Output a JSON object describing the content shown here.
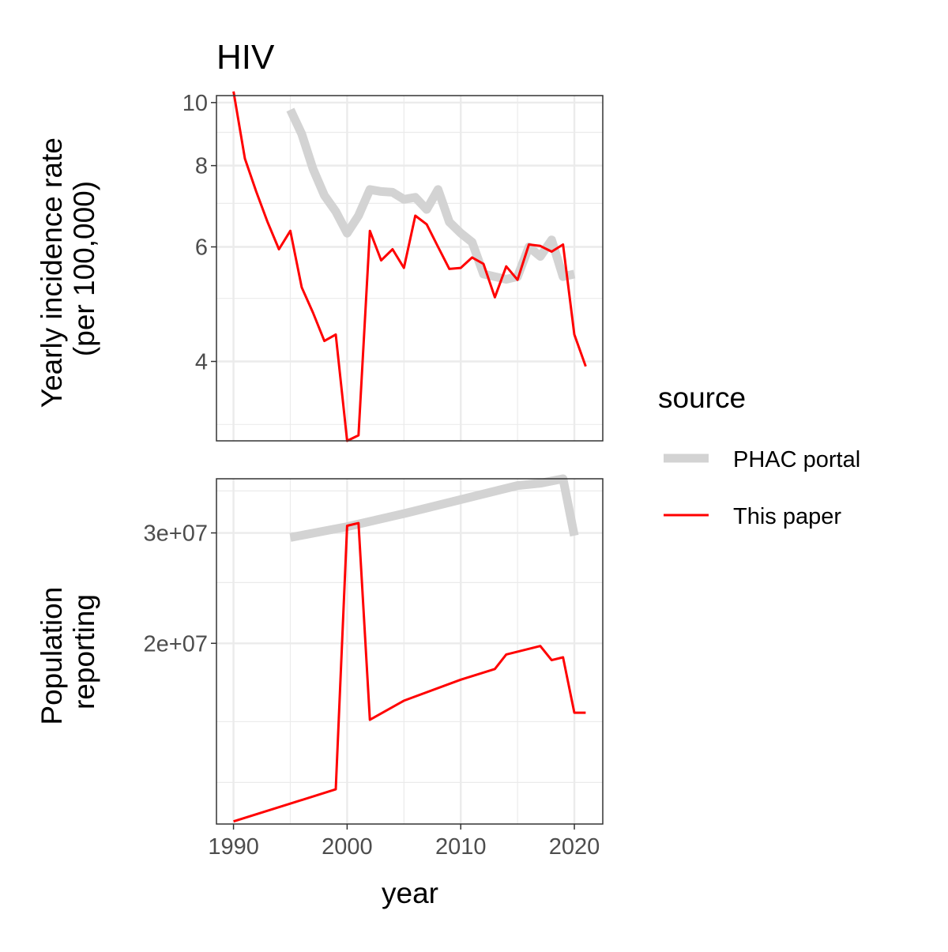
{
  "chart_data": {
    "type": "line",
    "title": "HIV",
    "xlabel": "year",
    "xlim": [
      1988.5,
      2022.5
    ],
    "x_ticks": [
      1990,
      2000,
      2010,
      2020
    ],
    "x_tick_labels": [
      "1990",
      "2000",
      "2010",
      "2020"
    ],
    "legend": {
      "title": "source",
      "position": "right",
      "entries": [
        {
          "label": "PHAC portal",
          "color": "#d3d3d3"
        },
        {
          "label": "This paper",
          "color": "#ff0000"
        }
      ]
    },
    "panels": [
      {
        "id": "incidence",
        "ylabel_lines": [
          "Yearly incidence rate",
          "(per 100,000)"
        ],
        "yscale": "log",
        "ylim": [
          3.02,
          10.25
        ],
        "y_ticks": [
          4,
          6,
          8,
          10
        ],
        "y_tick_labels": [
          "4",
          "6",
          "8",
          "10"
        ],
        "y_minor": [
          5,
          7,
          9,
          3.2
        ],
        "series": [
          {
            "name": "PHAC portal",
            "x": [
              1995,
              1996,
              1997,
              1998,
              1999,
              2000,
              2001,
              2002,
              2003,
              2004,
              2005,
              2006,
              2007,
              2008,
              2009,
              2010,
              2011,
              2012,
              2013,
              2014,
              2015,
              2016,
              2017,
              2018,
              2019,
              2020
            ],
            "y": [
              9.75,
              8.95,
              7.9,
              7.2,
              6.8,
              6.3,
              6.7,
              7.35,
              7.3,
              7.28,
              7.1,
              7.15,
              6.85,
              7.35,
              6.55,
              6.3,
              6.1,
              5.45,
              5.4,
              5.35,
              5.4,
              6.0,
              5.8,
              6.15,
              5.4,
              5.45
            ]
          },
          {
            "name": "This paper",
            "x": [
              1990,
              1991,
              1992,
              1993,
              1994,
              1995,
              1996,
              1997,
              1998,
              1999,
              2000,
              2001,
              2002,
              2003,
              2004,
              2005,
              2006,
              2007,
              2008,
              2009,
              2010,
              2011,
              2012,
              2013,
              2014,
              2015,
              2016,
              2017,
              2018,
              2019,
              2020,
              2021
            ],
            "y": [
              10.4,
              8.2,
              7.3,
              6.55,
              5.95,
              6.35,
              5.2,
              4.75,
              4.3,
              4.4,
              3.02,
              3.08,
              6.35,
              5.72,
              5.95,
              5.57,
              6.7,
              6.5,
              6.0,
              5.55,
              5.57,
              5.78,
              5.65,
              5.02,
              5.6,
              5.34,
              6.05,
              6.02,
              5.9,
              6.05,
              4.4,
              3.93
            ]
          }
        ]
      },
      {
        "id": "population",
        "ylabel_lines": [
          "Population",
          "reporting"
        ],
        "yscale": "log",
        "ylim": [
          10300000,
          36600000
        ],
        "y_ticks": [
          20000000,
          30000000
        ],
        "y_tick_labels": [
          "2e+07",
          "3e+07"
        ],
        "y_minor": [
          15000000,
          12000000,
          25000000,
          35000000
        ],
        "series": [
          {
            "name": "PHAC portal",
            "x": [
              1995,
              2000,
              2005,
              2010,
              2015,
              2017,
              2019,
              2020
            ],
            "y": [
              29500000,
              30700000,
              32200000,
              33900000,
              35700000,
              36000000,
              36600000,
              29700000
            ]
          },
          {
            "name": "This paper",
            "x": [
              1990,
              1999,
              2000,
              2001,
              2002,
              2005,
              2010,
              2013,
              2014,
              2017,
              2018,
              2019,
              2020,
              2021
            ],
            "y": [
              10400000,
              11700000,
              30800000,
              31100000,
              15100000,
              16200000,
              17500000,
              18200000,
              19200000,
              19800000,
              18800000,
              19000000,
              15500000,
              15500000
            ]
          }
        ]
      }
    ]
  }
}
